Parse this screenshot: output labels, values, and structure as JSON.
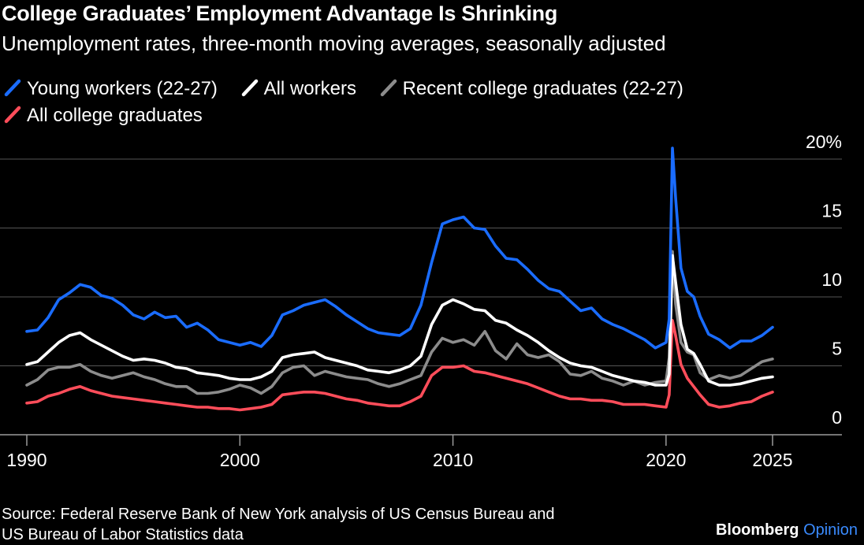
{
  "header": {
    "title": "College Graduates’ Employment Advantage Is Shrinking",
    "subtitle": "Unemployment rates, three-month moving averages, seasonally adjusted"
  },
  "footer": {
    "source_line1": "Source: Federal Reserve Bank of New York analysis of US Census Bureau and",
    "source_line2": "US Bureau of Labor Statistics data",
    "brand_main": "Bloomberg",
    "brand_accent": "Opinion"
  },
  "colors": {
    "background": "#000000",
    "young_workers": "#1a6cff",
    "all_workers": "#ffffff",
    "recent_grads": "#8c8c8c",
    "all_grads": "#ff4d5a",
    "brand_accent": "#3a8bff"
  },
  "chart_data": {
    "type": "line",
    "title": "College Graduates’ Employment Advantage Is Shrinking",
    "subtitle": "Unemployment rates, three-month moving averages, seasonally adjusted",
    "xlabel": "",
    "ylabel": "",
    "xlim": [
      1990,
      2025
    ],
    "ylim": [
      0,
      20
    ],
    "x_ticks": [
      "1990",
      "2000",
      "2010",
      "2020",
      "2025"
    ],
    "y_ticks": [
      "20%",
      "15",
      "10",
      "5",
      "0"
    ],
    "grid": "horizontal",
    "legend_position": "top-left",
    "series": [
      {
        "name": "Young workers (22-27)",
        "color": "#1a6cff",
        "points": [
          [
            1990,
            7.5
          ],
          [
            1990.5,
            7.6
          ],
          [
            1991,
            8.5
          ],
          [
            1991.5,
            9.8
          ],
          [
            1992,
            10.3
          ],
          [
            1992.5,
            10.9
          ],
          [
            1993,
            10.7
          ],
          [
            1993.5,
            10.1
          ],
          [
            1994,
            9.9
          ],
          [
            1994.5,
            9.4
          ],
          [
            1995,
            8.7
          ],
          [
            1995.5,
            8.4
          ],
          [
            1996,
            8.9
          ],
          [
            1996.5,
            8.5
          ],
          [
            1997,
            8.6
          ],
          [
            1997.5,
            7.8
          ],
          [
            1998,
            8.1
          ],
          [
            1998.5,
            7.6
          ],
          [
            1999,
            6.9
          ],
          [
            1999.5,
            6.7
          ],
          [
            2000,
            6.5
          ],
          [
            2000.5,
            6.7
          ],
          [
            2001,
            6.4
          ],
          [
            2001.5,
            7.2
          ],
          [
            2002,
            8.7
          ],
          [
            2002.5,
            9.0
          ],
          [
            2003,
            9.4
          ],
          [
            2003.5,
            9.6
          ],
          [
            2004,
            9.8
          ],
          [
            2004.5,
            9.3
          ],
          [
            2005,
            8.7
          ],
          [
            2005.5,
            8.2
          ],
          [
            2006,
            7.7
          ],
          [
            2006.5,
            7.4
          ],
          [
            2007,
            7.3
          ],
          [
            2007.5,
            7.2
          ],
          [
            2008,
            7.7
          ],
          [
            2008.5,
            9.4
          ],
          [
            2009,
            12.5
          ],
          [
            2009.5,
            15.3
          ],
          [
            2010,
            15.6
          ],
          [
            2010.5,
            15.8
          ],
          [
            2011,
            15.0
          ],
          [
            2011.5,
            14.9
          ],
          [
            2012,
            13.7
          ],
          [
            2012.5,
            12.8
          ],
          [
            2013,
            12.7
          ],
          [
            2013.5,
            12.0
          ],
          [
            2014,
            11.2
          ],
          [
            2014.5,
            10.6
          ],
          [
            2015,
            10.4
          ],
          [
            2015.5,
            9.7
          ],
          [
            2016,
            9.0
          ],
          [
            2016.5,
            9.2
          ],
          [
            2017,
            8.4
          ],
          [
            2017.5,
            8.0
          ],
          [
            2018,
            7.7
          ],
          [
            2018.5,
            7.3
          ],
          [
            2019,
            6.9
          ],
          [
            2019.5,
            6.3
          ],
          [
            2020.0,
            6.7
          ],
          [
            2020.15,
            8.4
          ],
          [
            2020.3,
            20.8
          ],
          [
            2020.45,
            17.2
          ],
          [
            2020.7,
            12.1
          ],
          [
            2021,
            10.4
          ],
          [
            2021.3,
            10.0
          ],
          [
            2021.6,
            8.6
          ],
          [
            2022,
            7.3
          ],
          [
            2022.5,
            6.9
          ],
          [
            2023,
            6.3
          ],
          [
            2023.5,
            6.8
          ],
          [
            2024,
            6.8
          ],
          [
            2024.5,
            7.2
          ],
          [
            2025,
            7.8
          ]
        ]
      },
      {
        "name": "All workers",
        "color": "#ffffff",
        "points": [
          [
            1990,
            5.1
          ],
          [
            1990.5,
            5.3
          ],
          [
            1991,
            6.0
          ],
          [
            1991.5,
            6.7
          ],
          [
            1992,
            7.2
          ],
          [
            1992.5,
            7.4
          ],
          [
            1993,
            6.9
          ],
          [
            1993.5,
            6.5
          ],
          [
            1994,
            6.1
          ],
          [
            1994.5,
            5.7
          ],
          [
            1995,
            5.4
          ],
          [
            1995.5,
            5.5
          ],
          [
            1996,
            5.4
          ],
          [
            1996.5,
            5.2
          ],
          [
            1997,
            4.9
          ],
          [
            1997.5,
            4.8
          ],
          [
            1998,
            4.5
          ],
          [
            1998.5,
            4.4
          ],
          [
            1999,
            4.3
          ],
          [
            1999.5,
            4.1
          ],
          [
            2000,
            4.0
          ],
          [
            2000.5,
            4.0
          ],
          [
            2001,
            4.2
          ],
          [
            2001.5,
            4.6
          ],
          [
            2002,
            5.6
          ],
          [
            2002.5,
            5.8
          ],
          [
            2003,
            5.9
          ],
          [
            2003.5,
            6.0
          ],
          [
            2004,
            5.6
          ],
          [
            2004.5,
            5.4
          ],
          [
            2005,
            5.2
          ],
          [
            2005.5,
            5.0
          ],
          [
            2006,
            4.7
          ],
          [
            2006.5,
            4.6
          ],
          [
            2007,
            4.5
          ],
          [
            2007.5,
            4.7
          ],
          [
            2008,
            5.0
          ],
          [
            2008.5,
            5.7
          ],
          [
            2009,
            8.0
          ],
          [
            2009.5,
            9.4
          ],
          [
            2010,
            9.8
          ],
          [
            2010.5,
            9.5
          ],
          [
            2011,
            9.1
          ],
          [
            2011.5,
            9.0
          ],
          [
            2012,
            8.3
          ],
          [
            2012.5,
            8.1
          ],
          [
            2013,
            7.6
          ],
          [
            2013.5,
            7.2
          ],
          [
            2014,
            6.7
          ],
          [
            2014.5,
            6.1
          ],
          [
            2015,
            5.6
          ],
          [
            2015.5,
            5.2
          ],
          [
            2016,
            5.0
          ],
          [
            2016.5,
            4.9
          ],
          [
            2017,
            4.6
          ],
          [
            2017.5,
            4.3
          ],
          [
            2018,
            4.1
          ],
          [
            2018.5,
            3.9
          ],
          [
            2019,
            3.8
          ],
          [
            2019.5,
            3.6
          ],
          [
            2020.0,
            3.6
          ],
          [
            2020.15,
            4.4
          ],
          [
            2020.3,
            13.0
          ],
          [
            2020.45,
            11.1
          ],
          [
            2020.7,
            8.0
          ],
          [
            2021,
            6.2
          ],
          [
            2021.3,
            5.9
          ],
          [
            2021.6,
            5.1
          ],
          [
            2022,
            3.9
          ],
          [
            2022.5,
            3.6
          ],
          [
            2023,
            3.6
          ],
          [
            2023.5,
            3.7
          ],
          [
            2024,
            3.9
          ],
          [
            2024.5,
            4.1
          ],
          [
            2025,
            4.2
          ]
        ]
      },
      {
        "name": "Recent college graduates (22-27)",
        "color": "#8c8c8c",
        "points": [
          [
            1990,
            3.6
          ],
          [
            1990.5,
            4.0
          ],
          [
            1991,
            4.7
          ],
          [
            1991.5,
            4.9
          ],
          [
            1992,
            4.9
          ],
          [
            1992.5,
            5.1
          ],
          [
            1993,
            4.6
          ],
          [
            1993.5,
            4.3
          ],
          [
            1994,
            4.1
          ],
          [
            1994.5,
            4.3
          ],
          [
            1995,
            4.5
          ],
          [
            1995.5,
            4.2
          ],
          [
            1996,
            4.0
          ],
          [
            1996.5,
            3.7
          ],
          [
            1997,
            3.5
          ],
          [
            1997.5,
            3.5
          ],
          [
            1998,
            3.0
          ],
          [
            1998.5,
            3.0
          ],
          [
            1999,
            3.1
          ],
          [
            1999.5,
            3.3
          ],
          [
            2000,
            3.6
          ],
          [
            2000.5,
            3.4
          ],
          [
            2001,
            3.0
          ],
          [
            2001.5,
            3.5
          ],
          [
            2002,
            4.5
          ],
          [
            2002.5,
            4.9
          ],
          [
            2003,
            5.0
          ],
          [
            2003.5,
            4.3
          ],
          [
            2004,
            4.6
          ],
          [
            2004.5,
            4.4
          ],
          [
            2005,
            4.2
          ],
          [
            2005.5,
            4.1
          ],
          [
            2006,
            4.0
          ],
          [
            2006.5,
            3.7
          ],
          [
            2007,
            3.5
          ],
          [
            2007.5,
            3.7
          ],
          [
            2008,
            4.0
          ],
          [
            2008.5,
            4.3
          ],
          [
            2009,
            6.0
          ],
          [
            2009.5,
            7.0
          ],
          [
            2010,
            6.7
          ],
          [
            2010.5,
            6.9
          ],
          [
            2011,
            6.5
          ],
          [
            2011.5,
            7.5
          ],
          [
            2012,
            6.1
          ],
          [
            2012.5,
            5.5
          ],
          [
            2013,
            6.6
          ],
          [
            2013.5,
            5.8
          ],
          [
            2014,
            5.6
          ],
          [
            2014.5,
            5.8
          ],
          [
            2015,
            5.3
          ],
          [
            2015.5,
            4.4
          ],
          [
            2016,
            4.3
          ],
          [
            2016.5,
            4.6
          ],
          [
            2017,
            4.1
          ],
          [
            2017.5,
            3.9
          ],
          [
            2018,
            3.6
          ],
          [
            2018.5,
            3.9
          ],
          [
            2019,
            3.6
          ],
          [
            2019.5,
            3.8
          ],
          [
            2020.0,
            3.9
          ],
          [
            2020.15,
            5.6
          ],
          [
            2020.3,
            13.3
          ],
          [
            2020.45,
            9.5
          ],
          [
            2020.7,
            6.7
          ],
          [
            2021,
            6.0
          ],
          [
            2021.3,
            5.8
          ],
          [
            2021.6,
            4.5
          ],
          [
            2022,
            4.0
          ],
          [
            2022.5,
            4.3
          ],
          [
            2023,
            4.1
          ],
          [
            2023.5,
            4.3
          ],
          [
            2024,
            4.8
          ],
          [
            2024.5,
            5.3
          ],
          [
            2025,
            5.5
          ]
        ]
      },
      {
        "name": "All college graduates",
        "color": "#ff4d5a",
        "points": [
          [
            1990,
            2.3
          ],
          [
            1990.5,
            2.4
          ],
          [
            1991,
            2.8
          ],
          [
            1991.5,
            3.0
          ],
          [
            1992,
            3.3
          ],
          [
            1992.5,
            3.5
          ],
          [
            1993,
            3.2
          ],
          [
            1993.5,
            3.0
          ],
          [
            1994,
            2.8
          ],
          [
            1994.5,
            2.7
          ],
          [
            1995,
            2.6
          ],
          [
            1995.5,
            2.5
          ],
          [
            1996,
            2.4
          ],
          [
            1996.5,
            2.3
          ],
          [
            1997,
            2.2
          ],
          [
            1997.5,
            2.1
          ],
          [
            1998,
            2.0
          ],
          [
            1998.5,
            2.0
          ],
          [
            1999,
            1.9
          ],
          [
            1999.5,
            1.9
          ],
          [
            2000,
            1.8
          ],
          [
            2000.5,
            1.9
          ],
          [
            2001,
            2.0
          ],
          [
            2001.5,
            2.2
          ],
          [
            2002,
            2.9
          ],
          [
            2002.5,
            3.0
          ],
          [
            2003,
            3.1
          ],
          [
            2003.5,
            3.1
          ],
          [
            2004,
            3.0
          ],
          [
            2004.5,
            2.8
          ],
          [
            2005,
            2.6
          ],
          [
            2005.5,
            2.5
          ],
          [
            2006,
            2.3
          ],
          [
            2006.5,
            2.2
          ],
          [
            2007,
            2.1
          ],
          [
            2007.5,
            2.1
          ],
          [
            2008,
            2.4
          ],
          [
            2008.5,
            2.8
          ],
          [
            2009,
            4.3
          ],
          [
            2009.5,
            4.9
          ],
          [
            2010,
            4.9
          ],
          [
            2010.5,
            5.0
          ],
          [
            2011,
            4.6
          ],
          [
            2011.5,
            4.5
          ],
          [
            2012,
            4.3
          ],
          [
            2012.5,
            4.1
          ],
          [
            2013,
            3.9
          ],
          [
            2013.5,
            3.7
          ],
          [
            2014,
            3.4
          ],
          [
            2014.5,
            3.1
          ],
          [
            2015,
            2.8
          ],
          [
            2015.5,
            2.6
          ],
          [
            2016,
            2.6
          ],
          [
            2016.5,
            2.5
          ],
          [
            2017,
            2.5
          ],
          [
            2017.5,
            2.4
          ],
          [
            2018,
            2.2
          ],
          [
            2018.5,
            2.2
          ],
          [
            2019,
            2.2
          ],
          [
            2019.5,
            2.1
          ],
          [
            2020.0,
            2.0
          ],
          [
            2020.15,
            2.9
          ],
          [
            2020.3,
            8.3
          ],
          [
            2020.45,
            7.2
          ],
          [
            2020.7,
            5.1
          ],
          [
            2021,
            4.1
          ],
          [
            2021.3,
            3.5
          ],
          [
            2021.6,
            2.9
          ],
          [
            2022,
            2.2
          ],
          [
            2022.5,
            2.0
          ],
          [
            2023,
            2.1
          ],
          [
            2023.5,
            2.3
          ],
          [
            2024,
            2.4
          ],
          [
            2024.5,
            2.8
          ],
          [
            2025,
            3.1
          ]
        ]
      }
    ]
  }
}
